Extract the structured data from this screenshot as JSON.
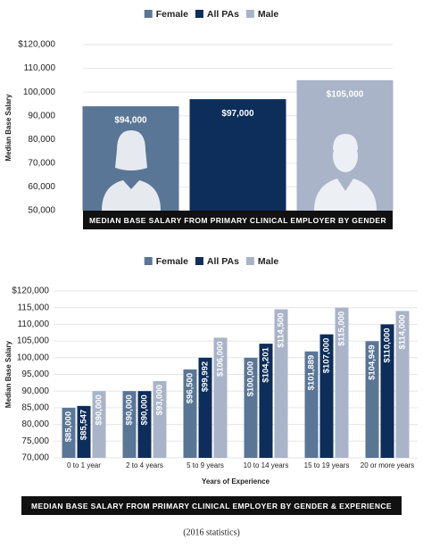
{
  "chart_data": [
    {
      "type": "bar",
      "y_label": "Median Base Salary",
      "caption": "MEDIAN BASE SALARY FROM PRIMARY CLINICAL EMPLOYER BY GENDER",
      "categories": [
        null
      ],
      "series": [
        {
          "name": "Female",
          "color": "#5a7696",
          "values": [
            94000
          ],
          "value_labels": [
            "$94,000"
          ]
        },
        {
          "name": "All PAs",
          "color": "#0d2d5a",
          "values": [
            97000
          ],
          "value_labels": [
            "$97,000"
          ]
        },
        {
          "name": "Male",
          "color": "#a9b4c8",
          "values": [
            105000
          ],
          "value_labels": [
            "$105,000"
          ]
        }
      ],
      "ylim": [
        50000,
        120000
      ],
      "yticks": [
        {
          "value": 50000,
          "label": "50,000"
        },
        {
          "value": 60000,
          "label": "60,000"
        },
        {
          "value": 70000,
          "label": "70,000"
        },
        {
          "value": 80000,
          "label": "80,000"
        },
        {
          "value": 90000,
          "label": "90,000"
        },
        {
          "value": 100000,
          "label": "100,000"
        },
        {
          "value": 110000,
          "label": "110,000"
        },
        {
          "value": 120000,
          "label": "$120,000"
        }
      ]
    },
    {
      "type": "bar",
      "y_label": "Median Base Salary",
      "x_label": "Years of Experience",
      "caption": "MEDIAN BASE SALARY FROM PRIMARY CLINICAL EMPLOYER BY GENDER & EXPERIENCE",
      "categories": [
        "0 to 1 year",
        "2 to 4 years",
        "5 to 9 years",
        "10 to 14 years",
        "15 to 19 years",
        "20 or more years"
      ],
      "series": [
        {
          "name": "Female",
          "color": "#5a7696",
          "values": [
            85000,
            90000,
            96500,
            100000,
            101889,
            104949
          ],
          "value_labels": [
            "$85,000",
            "$90,000",
            "$96,500",
            "$100,000",
            "$101,889",
            "$104,949"
          ]
        },
        {
          "name": "All PAs",
          "color": "#0d2d5a",
          "values": [
            85547,
            90000,
            99992,
            104201,
            107000,
            110000
          ],
          "value_labels": [
            "$85,547",
            "$90,000",
            "$99,992",
            "$104,201",
            "$107,000",
            "$110,000"
          ]
        },
        {
          "name": "Male",
          "color": "#a9b4c8",
          "values": [
            90000,
            93000,
            106000,
            114500,
            115000,
            114000
          ],
          "value_labels": [
            "$90,000",
            "$93,000",
            "$106,000",
            "$114,500",
            "$115,000",
            "$114,000"
          ]
        }
      ],
      "ylim": [
        70000,
        120000
      ],
      "yticks": [
        {
          "value": 70000,
          "label": "70,000"
        },
        {
          "value": 75000,
          "label": "75,000"
        },
        {
          "value": 80000,
          "label": "80,000"
        },
        {
          "value": 85000,
          "label": "85,000"
        },
        {
          "value": 90000,
          "label": "90,000"
        },
        {
          "value": 95000,
          "label": "95,000"
        },
        {
          "value": 100000,
          "label": "100,000"
        },
        {
          "value": 105000,
          "label": "105,000"
        },
        {
          "value": 110000,
          "label": "110,000"
        },
        {
          "value": 115000,
          "label": "115,000"
        },
        {
          "value": 120000,
          "label": "$120,000"
        }
      ]
    }
  ],
  "footer": "(2016 statistics)"
}
